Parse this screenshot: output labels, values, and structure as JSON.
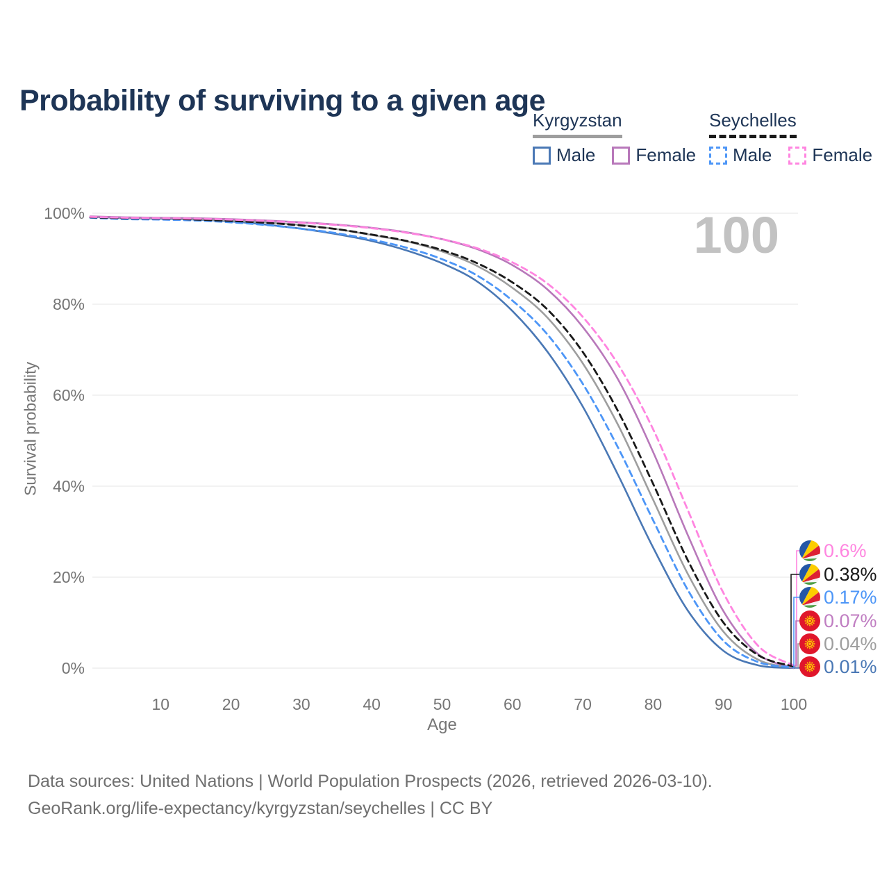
{
  "title": "Probability of surviving to a given age",
  "watermark_age_label": "100",
  "colors": {
    "title": "#1e3556",
    "axis_text": "#757575",
    "footer_text": "#6f6f6f",
    "gridline": "#ebebeb",
    "watermark": "#c2c2c2",
    "kg_male": "#4a78b5",
    "kg_female": "#b878ba",
    "kg_all": "#9e9e9e",
    "sc_male": "#4d96f7",
    "sc_female": "#ff85e0",
    "sc_all": "#1a1a1a"
  },
  "legend": {
    "kyrgyzstan": {
      "name": "Kyrgyzstan",
      "male_label": "Male",
      "female_label": "Female"
    },
    "seychelles": {
      "name": "Seychelles",
      "male_label": "Male",
      "female_label": "Female"
    }
  },
  "y_axis": {
    "title": "Survival probability",
    "tick_values": [
      100,
      80,
      60,
      40,
      20,
      0
    ],
    "tick_labels": [
      "100%",
      "80%",
      "60%",
      "40%",
      "20%",
      "0%"
    ]
  },
  "x_axis": {
    "title": "Age",
    "tick_values": [
      10,
      20,
      30,
      40,
      50,
      60,
      70,
      80,
      90,
      100
    ],
    "tick_labels": [
      "10",
      "20",
      "30",
      "40",
      "50",
      "60",
      "70",
      "80",
      "90",
      "100"
    ]
  },
  "end_labels": [
    {
      "key": "sc_female",
      "flag": "seychelles",
      "value_label": "0.6%",
      "color": "#ff85e0"
    },
    {
      "key": "sc_all",
      "flag": "seychelles",
      "value_label": "0.38%",
      "color": "#1a1a1a"
    },
    {
      "key": "sc_male",
      "flag": "seychelles",
      "value_label": "0.17%",
      "color": "#4d96f7"
    },
    {
      "key": "kg_female",
      "flag": "kyrgyzstan",
      "value_label": "0.07%",
      "color": "#c07ec2"
    },
    {
      "key": "kg_all",
      "flag": "kyrgyzstan",
      "value_label": "0.04%",
      "color": "#9e9e9e"
    },
    {
      "key": "kg_male",
      "flag": "kyrgyzstan",
      "value_label": "0.01%",
      "color": "#4a78b5"
    }
  ],
  "footer": {
    "line1": "Data sources: United Nations | World Population Prospects (2026, retrieved 2026-03-10).",
    "line2": "GeoRank.org/life-expectancy/kyrgyzstan/seychelles | CC BY"
  },
  "chart_data": {
    "type": "line",
    "title": "Probability of surviving to a given age",
    "xlabel": "Age",
    "ylabel": "Survival probability",
    "xlim": [
      0,
      100
    ],
    "ylim_percent": [
      0,
      100
    ],
    "grid": "horizontal",
    "legend_position": "top-right",
    "x": [
      0,
      5,
      10,
      15,
      20,
      25,
      30,
      35,
      40,
      45,
      50,
      55,
      60,
      65,
      70,
      75,
      80,
      85,
      90,
      95,
      100
    ],
    "series": [
      {
        "key": "kg_male",
        "name": "Kyrgyzstan Male",
        "style": "solid",
        "color": "#4a78b5",
        "values": [
          99.2,
          98.9,
          98.8,
          98.6,
          98.2,
          97.5,
          96.6,
          95.4,
          93.9,
          91.8,
          89.0,
          85.0,
          78.5,
          69.5,
          57.5,
          42.5,
          26.5,
          12.5,
          3.8,
          0.6,
          0.01
        ]
      },
      {
        "key": "kg_all",
        "name": "Kyrgyzstan Both sexes",
        "style": "solid",
        "color": "#9e9e9e",
        "values": [
          99.2,
          99.0,
          98.9,
          98.7,
          98.4,
          98.0,
          97.4,
          96.5,
          95.2,
          93.8,
          91.6,
          88.4,
          83.6,
          77.0,
          67.0,
          53.5,
          37.0,
          20.5,
          8.0,
          1.8,
          0.04
        ]
      },
      {
        "key": "kg_female",
        "name": "Kyrgyzstan Female",
        "style": "solid",
        "color": "#b878ba",
        "values": [
          99.3,
          99.1,
          99.0,
          98.9,
          98.7,
          98.4,
          98.0,
          97.5,
          96.8,
          95.8,
          94.3,
          92.1,
          88.6,
          83.2,
          75.0,
          63.5,
          47.5,
          29.0,
          12.5,
          3.0,
          0.07
        ]
      },
      {
        "key": "sc_male",
        "name": "Seychelles Male",
        "style": "dashed",
        "color": "#4d96f7",
        "values": [
          99.0,
          98.7,
          98.6,
          98.4,
          98.0,
          97.4,
          96.6,
          95.6,
          94.2,
          92.4,
          89.9,
          86.3,
          80.8,
          73.3,
          62.5,
          48.5,
          32.5,
          17.0,
          6.0,
          1.3,
          0.17
        ]
      },
      {
        "key": "sc_all",
        "name": "Seychelles Both sexes",
        "style": "dashed",
        "color": "#1a1a1a",
        "values": [
          99.1,
          98.9,
          98.8,
          98.6,
          98.3,
          97.9,
          97.3,
          96.5,
          95.3,
          93.9,
          91.9,
          89.0,
          84.8,
          78.8,
          69.5,
          56.5,
          40.5,
          23.5,
          10.0,
          2.8,
          0.38
        ]
      },
      {
        "key": "sc_female",
        "name": "Seychelles Female",
        "style": "dashed",
        "color": "#ff85e0",
        "values": [
          99.2,
          99.0,
          98.9,
          98.8,
          98.6,
          98.3,
          97.9,
          97.4,
          96.7,
          95.7,
          94.3,
          92.3,
          89.2,
          84.5,
          77.2,
          66.8,
          52.5,
          34.5,
          16.5,
          4.8,
          0.6
        ]
      }
    ],
    "end_values_percent": {
      "sc_female": 0.6,
      "sc_all": 0.38,
      "sc_male": 0.17,
      "kg_female": 0.07,
      "kg_all": 0.04,
      "kg_male": 0.01
    }
  }
}
